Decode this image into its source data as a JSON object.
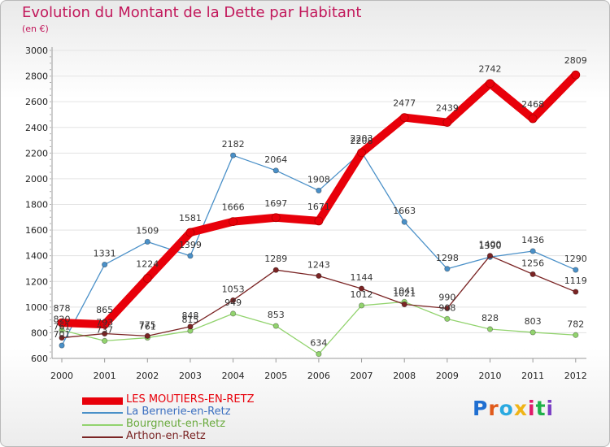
{
  "title": "Evolution du Montant de la Dette par Habitant",
  "subtitle": "(en €)",
  "logo": {
    "text": "Proxiti",
    "colors": [
      "#1f6fd1",
      "#e05a1b",
      "#2aa9e0",
      "#f0b417",
      "#e01b6a",
      "#1fb14a",
      "#7b3fc4"
    ]
  },
  "chart_data": {
    "type": "line",
    "title": "Evolution du Montant de la Dette par Habitant",
    "subtitle": "(en €)",
    "xlabel": "",
    "ylabel": "",
    "categories": [
      "2000",
      "2001",
      "2002",
      "2003",
      "2004",
      "2005",
      "2006",
      "2007",
      "2008",
      "2009",
      "2010",
      "2011",
      "2012"
    ],
    "ylim": [
      600,
      3000
    ],
    "yticks": [
      600,
      800,
      1000,
      1200,
      1400,
      1600,
      1800,
      2000,
      2200,
      2400,
      2600,
      2800,
      3000
    ],
    "grid": "horizontal",
    "legend_position": "bottom-left",
    "series": [
      {
        "name": "LES MOUTIERS-EN-RETZ",
        "color": "#e8000a",
        "values": [
          878,
          865,
          1224,
          1581,
          1666,
          1697,
          1671,
          2203,
          2477,
          2439,
          2742,
          2468,
          2809
        ]
      },
      {
        "name": "La Bernerie-en-Retz",
        "color": "#4a90c8",
        "values": [
          701,
          1331,
          1509,
          1399,
          2182,
          2064,
          1908,
          2208,
          1663,
          1298,
          1390,
          1436,
          1290
        ]
      },
      {
        "name": "Bourgneut-en-Retz",
        "color": "#92d36e",
        "values": [
          820,
          737,
          761,
          815,
          949,
          853,
          634,
          1012,
          1041,
          908,
          828,
          803,
          782
        ]
      },
      {
        "name": "Arthon-en-Retz",
        "color": "#7a2424",
        "values": [
          761,
          793,
          775,
          848,
          1053,
          1289,
          1243,
          1144,
          1021,
          990,
          1400,
          1256,
          1119
        ]
      }
    ]
  }
}
